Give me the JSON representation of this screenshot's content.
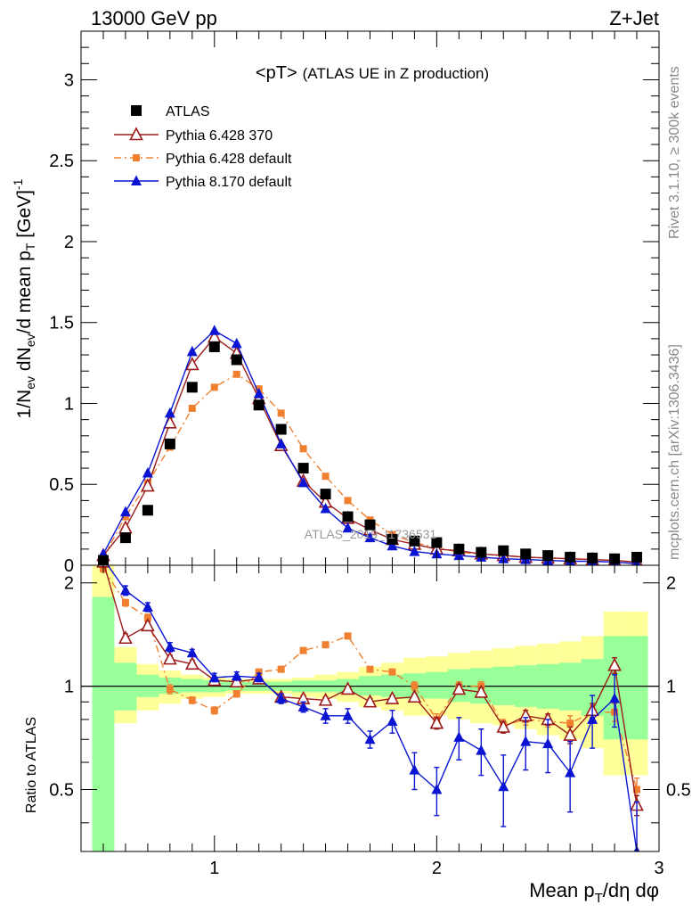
{
  "header": {
    "left": "13000 GeV pp",
    "right": "Z+Jet"
  },
  "side_texts": {
    "rivet": "Rivet 3.1.10, ≥ 300k events",
    "mcplots": "mcplots.cern.ch [arXiv:1306.3436]"
  },
  "watermark": "ATLAS_2019_I1736531",
  "chart_data": [
    {
      "type": "scatter",
      "title": "<pT> (ATLAS UE in Z production)",
      "xlabel": "Mean pT/dη dφ",
      "ylabel": "1/Nev dNev/d mean pT [GeV]-1",
      "xlim": [
        0.4,
        3.0
      ],
      "ylim": [
        0,
        3.3
      ],
      "y_ticks": [
        "0",
        "0.5",
        "1",
        "1.5",
        "2",
        "2.5",
        "3"
      ],
      "legend_position": "top-left",
      "x": [
        0.5,
        0.6,
        0.7,
        0.8,
        0.9,
        1.0,
        1.1,
        1.2,
        1.3,
        1.4,
        1.5,
        1.6,
        1.7,
        1.8,
        1.9,
        2.0,
        2.1,
        2.2,
        2.3,
        2.4,
        2.5,
        2.6,
        2.7,
        2.8,
        2.9
      ],
      "series": [
        {
          "name": "ATLAS",
          "color": "#000000",
          "marker": "square",
          "line": "none",
          "values": [
            0.03,
            0.17,
            0.34,
            0.75,
            1.1,
            1.35,
            1.27,
            0.99,
            0.84,
            0.6,
            0.44,
            0.3,
            0.25,
            0.16,
            0.15,
            0.14,
            0.1,
            0.08,
            0.09,
            0.07,
            0.06,
            0.05,
            0.045,
            0.04,
            0.05
          ]
        },
        {
          "name": "Pythia 6.428 370",
          "color": "#9b1b1b",
          "marker": "open-triangle",
          "line": "solid",
          "values": [
            0.06,
            0.23,
            0.49,
            0.88,
            1.24,
            1.41,
            1.31,
            1.03,
            0.74,
            0.52,
            0.39,
            0.29,
            0.22,
            0.16,
            0.13,
            0.1,
            0.09,
            0.07,
            0.06,
            0.05,
            0.045,
            0.04,
            0.035,
            0.03,
            0.02
          ]
        },
        {
          "name": "Pythia 6.428 default",
          "color": "#f08030",
          "marker": "square",
          "line": "dashdot",
          "values": [
            0.05,
            0.3,
            0.51,
            0.73,
            0.97,
            1.1,
            1.18,
            1.09,
            0.94,
            0.72,
            0.55,
            0.4,
            0.28,
            0.19,
            0.14,
            0.11,
            0.08,
            0.07,
            0.06,
            0.05,
            0.045,
            0.04,
            0.035,
            0.03,
            0.02
          ]
        },
        {
          "name": "Pythia 8.170 default",
          "color": "#0a14d2",
          "marker": "triangle",
          "line": "solid",
          "values": [
            0.07,
            0.33,
            0.57,
            0.94,
            1.32,
            1.45,
            1.37,
            1.06,
            0.75,
            0.51,
            0.35,
            0.23,
            0.17,
            0.12,
            0.085,
            0.07,
            0.06,
            0.05,
            0.04,
            0.035,
            0.03,
            0.025,
            0.025,
            0.02,
            0.01
          ]
        }
      ]
    },
    {
      "type": "scatter",
      "title": "",
      "xlabel": "Mean pT/dη dφ",
      "ylabel": "Ratio to ATLAS",
      "xlim": [
        0.4,
        3.0
      ],
      "ylim": [
        0.33,
        2.25
      ],
      "log_y": true,
      "y_ticks": [
        "0.5",
        "1",
        "2"
      ],
      "x_ticks": [
        "1",
        "2",
        "3"
      ],
      "reference_line": 1,
      "x": [
        0.5,
        0.6,
        0.7,
        0.8,
        0.9,
        1.0,
        1.1,
        1.2,
        1.3,
        1.4,
        1.5,
        1.6,
        1.7,
        1.8,
        1.9,
        2.0,
        2.1,
        2.2,
        2.3,
        2.4,
        2.5,
        2.6,
        2.7,
        2.8,
        2.9
      ],
      "bands": {
        "stat_green_lo": [
          0.33,
          0.85,
          0.93,
          0.95,
          0.96,
          0.96,
          0.97,
          0.97,
          0.97,
          0.96,
          0.96,
          0.95,
          0.94,
          0.93,
          0.92,
          0.92,
          0.9,
          0.89,
          0.88,
          0.87,
          0.86,
          0.85,
          0.82,
          0.7,
          0.7
        ],
        "stat_green_hi": [
          1.82,
          1.17,
          1.08,
          1.06,
          1.05,
          1.04,
          1.03,
          1.03,
          1.03,
          1.04,
          1.04,
          1.05,
          1.07,
          1.08,
          1.09,
          1.1,
          1.12,
          1.13,
          1.14,
          1.15,
          1.16,
          1.17,
          1.2,
          1.4,
          1.4
        ],
        "total_yellow_lo": [
          0.33,
          0.78,
          0.85,
          0.89,
          0.92,
          0.93,
          0.95,
          0.95,
          0.95,
          0.93,
          0.92,
          0.9,
          0.87,
          0.85,
          0.82,
          0.82,
          0.8,
          0.78,
          0.77,
          0.75,
          0.72,
          0.7,
          0.66,
          0.55,
          0.55
        ],
        "total_yellow_hi": [
          2.25,
          1.3,
          1.16,
          1.11,
          1.08,
          1.06,
          1.05,
          1.05,
          1.05,
          1.06,
          1.08,
          1.1,
          1.14,
          1.17,
          1.21,
          1.22,
          1.25,
          1.27,
          1.29,
          1.31,
          1.33,
          1.35,
          1.4,
          1.65,
          1.65
        ]
      },
      "series": [
        {
          "name": "Pythia 6.428 370",
          "color": "#9b1b1b",
          "marker": "open-triangle",
          "line": "solid",
          "values": [
            2.3,
            1.38,
            1.5,
            1.2,
            1.16,
            1.04,
            1.03,
            1.05,
            0.93,
            0.92,
            0.91,
            0.98,
            0.9,
            0.92,
            0.93,
            0.78,
            0.98,
            0.96,
            0.76,
            0.82,
            0.8,
            0.72,
            0.85,
            1.15,
            0.45
          ],
          "errors": [
            0.05,
            0.04,
            0.04,
            0.03,
            0.03,
            0.02,
            0.02,
            0.02,
            0.02,
            0.02,
            0.02,
            0.02,
            0.02,
            0.02,
            0.02,
            0.03,
            0.03,
            0.03,
            0.03,
            0.03,
            0.03,
            0.04,
            0.04,
            0.06,
            0.03
          ]
        },
        {
          "name": "Pythia 6.428 default",
          "color": "#f08030",
          "marker": "square",
          "line": "dashdot",
          "values": [
            2.2,
            1.75,
            1.58,
            0.98,
            0.91,
            0.85,
            0.95,
            1.1,
            1.12,
            1.27,
            1.32,
            1.4,
            1.12,
            1.1,
            1.0,
            0.8,
            1.0,
            1.0,
            0.77,
            0.8,
            0.79,
            0.78,
            0.84,
            0.84,
            0.5
          ],
          "errors": [
            0.05,
            0.04,
            0.04,
            0.03,
            0.02,
            0.02,
            0.02,
            0.02,
            0.02,
            0.02,
            0.02,
            0.02,
            0.02,
            0.02,
            0.03,
            0.03,
            0.03,
            0.03,
            0.03,
            0.03,
            0.03,
            0.04,
            0.04,
            0.05,
            0.04
          ]
        },
        {
          "name": "Pythia 8.170 default",
          "color": "#0a14d2",
          "marker": "triangle",
          "line": "solid",
          "values": [
            2.35,
            1.9,
            1.7,
            1.3,
            1.25,
            1.06,
            1.07,
            1.06,
            0.92,
            0.87,
            0.82,
            0.82,
            0.7,
            0.79,
            0.57,
            0.5,
            0.71,
            0.65,
            0.51,
            0.69,
            0.68,
            0.56,
            0.8,
            0.92,
            0.3
          ],
          "errors": [
            0.08,
            0.06,
            0.05,
            0.04,
            0.03,
            0.03,
            0.03,
            0.03,
            0.03,
            0.03,
            0.04,
            0.04,
            0.04,
            0.06,
            0.07,
            0.08,
            0.1,
            0.1,
            0.12,
            0.12,
            0.12,
            0.13,
            0.14,
            0.16,
            0.16
          ]
        }
      ]
    }
  ]
}
